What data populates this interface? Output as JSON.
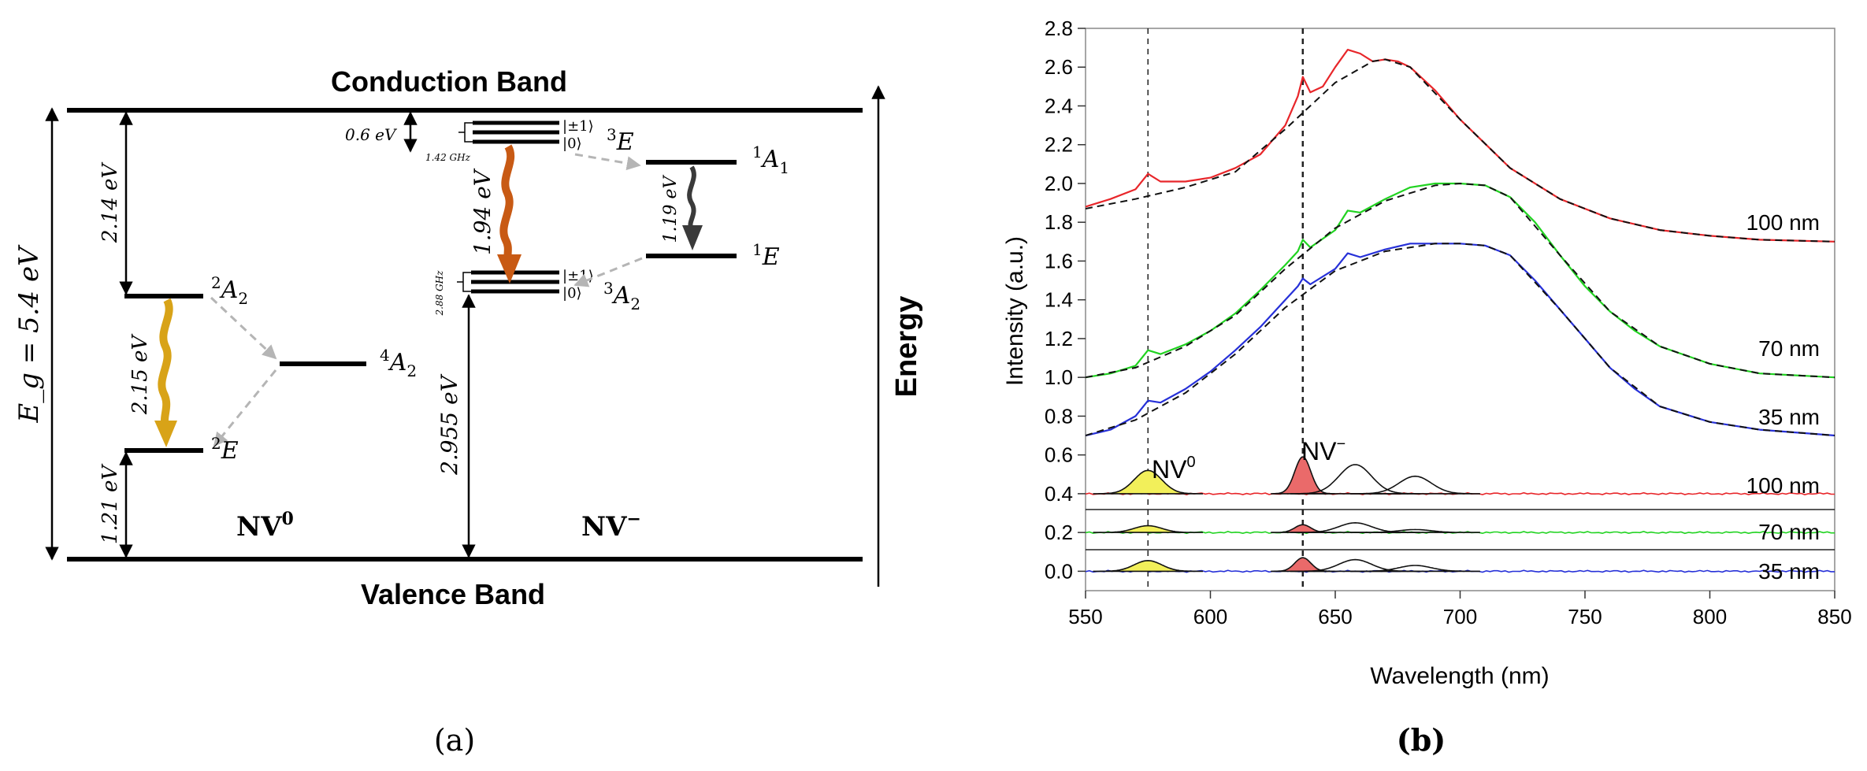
{
  "colors": {
    "curve_100": "#e8262a",
    "curve_70": "#21d321",
    "curve_35": "#2630d8",
    "fit": "#111111",
    "nv0_fill": "#f2ef5a",
    "nvm_fill": "#ea6a6a",
    "arrow_nv0": "#d8a318",
    "arrow_nvm": "#c85a14",
    "arrow_dark": "#3a3a3a",
    "dashed_gray": "#b5b5b5"
  },
  "panel_a": {
    "caption": "(a)",
    "conduction_band": "Conduction Band",
    "valence_band": "Valence Band",
    "energy_label": "Energy",
    "bandgap": "E_g = 5.4 eV",
    "nv0": {
      "label": "NV",
      "charge": "0",
      "gap_top": "2.14 eV",
      "gap_bottom": "1.21 eV",
      "transition": "2.15 eV",
      "states": {
        "a2": "A",
        "a2_sub": "2",
        "a2_sup": "2",
        "e": "E",
        "e_sup": "2",
        "a4": "A",
        "a4_sub": "2",
        "a4_sup": "4"
      }
    },
    "nvm": {
      "label": "NV",
      "charge": "−",
      "gap_top": "0.6 eV",
      "gap_bottom": "2.955 eV",
      "transition_main": "1.94 eV",
      "transition_singlet": "1.19 eV",
      "split_excited": "1.42 GHz",
      "split_ground": "2.88 GHz",
      "sublevel_pm1": "|±1⟩",
      "sublevel_0": "|0⟩",
      "states": {
        "e3": "E",
        "e3_sup": "3",
        "a2_3": "A",
        "a2_3_sub": "2",
        "a2_3_sup": "3",
        "a1": "A",
        "a1_sub": "1",
        "a1_sup": "1",
        "e1": "E",
        "e1_sup": "1"
      }
    }
  },
  "panel_b": {
    "caption": "(b)",
    "peak_labels": {
      "nv0": "NV",
      "nv0_sup": "0",
      "nvm": "NV",
      "nvm_sup": "−"
    },
    "curve_labels": {
      "upper_100": "100 nm",
      "upper_70": "70 nm",
      "upper_35": "35 nm",
      "lower_100": "100 nm",
      "lower_70": "70 nm",
      "lower_35": "35 nm"
    }
  },
  "chart_data": {
    "type": "line",
    "title": "",
    "xlabel": "Wavelength (nm)",
    "ylabel": "Intensity (a.u.)",
    "xlim": [
      550,
      850
    ],
    "ylim": [
      -0.1,
      2.8
    ],
    "x_ticks": [
      550,
      600,
      650,
      700,
      750,
      800,
      850
    ],
    "y_ticks": [
      0.0,
      0.2,
      0.4,
      0.6,
      0.8,
      1.0,
      1.2,
      1.4,
      1.6,
      1.8,
      2.0,
      2.2,
      2.4,
      2.6,
      2.8
    ],
    "reference_lines": [
      575,
      637
    ],
    "series": [
      {
        "name": "100 nm",
        "color": "#e8262a",
        "x": [
          550,
          560,
          570,
          575,
          580,
          590,
          600,
          610,
          620,
          630,
          635,
          637,
          640,
          645,
          650,
          655,
          660,
          665,
          670,
          675,
          680,
          690,
          700,
          720,
          740,
          760,
          780,
          800,
          820,
          850
        ],
        "y": [
          1.88,
          1.92,
          1.97,
          2.05,
          2.01,
          2.01,
          2.03,
          2.08,
          2.15,
          2.3,
          2.45,
          2.55,
          2.47,
          2.5,
          2.6,
          2.69,
          2.67,
          2.63,
          2.64,
          2.63,
          2.6,
          2.48,
          2.33,
          2.08,
          1.92,
          1.82,
          1.76,
          1.73,
          1.71,
          1.7
        ]
      },
      {
        "name": "100 nm fit",
        "color": "#111111",
        "x": [
          550,
          570,
          590,
          610,
          630,
          650,
          665,
          670,
          680,
          700,
          720,
          740,
          760,
          780,
          800,
          820,
          850
        ],
        "y": [
          1.87,
          1.92,
          1.98,
          2.06,
          2.28,
          2.52,
          2.63,
          2.64,
          2.6,
          2.33,
          2.08,
          1.92,
          1.82,
          1.76,
          1.73,
          1.71,
          1.7
        ]
      },
      {
        "name": "70 nm",
        "color": "#21d321",
        "x": [
          550,
          560,
          570,
          575,
          580,
          590,
          600,
          610,
          620,
          630,
          635,
          637,
          640,
          650,
          655,
          660,
          670,
          680,
          690,
          700,
          710,
          720,
          730,
          740,
          750,
          760,
          770,
          780,
          800,
          820,
          850
        ],
        "y": [
          1.0,
          1.02,
          1.06,
          1.14,
          1.12,
          1.17,
          1.24,
          1.33,
          1.45,
          1.58,
          1.65,
          1.71,
          1.67,
          1.76,
          1.86,
          1.85,
          1.92,
          1.98,
          2.0,
          2.0,
          1.99,
          1.93,
          1.8,
          1.63,
          1.47,
          1.34,
          1.24,
          1.16,
          1.07,
          1.02,
          1.0
        ]
      },
      {
        "name": "70 nm fit",
        "color": "#111111",
        "x": [
          550,
          570,
          590,
          610,
          630,
          650,
          670,
          690,
          700,
          710,
          720,
          740,
          760,
          780,
          800,
          820,
          850
        ],
        "y": [
          1.0,
          1.05,
          1.16,
          1.32,
          1.56,
          1.77,
          1.91,
          1.99,
          2.0,
          1.99,
          1.93,
          1.63,
          1.34,
          1.16,
          1.07,
          1.02,
          1.0
        ]
      },
      {
        "name": "35 nm",
        "color": "#2630d8",
        "x": [
          550,
          560,
          570,
          575,
          580,
          590,
          600,
          610,
          620,
          630,
          635,
          637,
          640,
          650,
          655,
          660,
          670,
          680,
          690,
          700,
          710,
          720,
          730,
          740,
          750,
          760,
          770,
          780,
          800,
          820,
          850
        ],
        "y": [
          0.7,
          0.73,
          0.8,
          0.88,
          0.87,
          0.94,
          1.03,
          1.14,
          1.26,
          1.4,
          1.47,
          1.51,
          1.48,
          1.56,
          1.64,
          1.62,
          1.66,
          1.69,
          1.69,
          1.69,
          1.68,
          1.63,
          1.5,
          1.35,
          1.2,
          1.05,
          0.94,
          0.85,
          0.77,
          0.73,
          0.7
        ]
      },
      {
        "name": "35 nm fit",
        "color": "#111111",
        "x": [
          550,
          570,
          590,
          610,
          630,
          650,
          670,
          690,
          700,
          710,
          720,
          740,
          760,
          780,
          800,
          820,
          850
        ],
        "y": [
          0.7,
          0.78,
          0.92,
          1.12,
          1.36,
          1.55,
          1.65,
          1.69,
          1.69,
          1.68,
          1.63,
          1.35,
          1.05,
          0.85,
          0.77,
          0.73,
          0.7
        ]
      }
    ],
    "decomposition": {
      "baselines": {
        "100 nm": 0.4,
        "70 nm": 0.2,
        "35 nm": 0.0
      },
      "peaks": [
        {
          "curve": "100 nm",
          "center": 575,
          "height": 0.12,
          "fill": "nv0"
        },
        {
          "curve": "100 nm",
          "center": 637,
          "height": 0.19,
          "fill": "nvm"
        },
        {
          "curve": "100 nm",
          "center": 658,
          "height": 0.15,
          "fill": "none"
        },
        {
          "curve": "100 nm",
          "center": 682,
          "height": 0.09,
          "fill": "none"
        },
        {
          "curve": "70 nm",
          "center": 575,
          "height": 0.035,
          "fill": "nv0"
        },
        {
          "curve": "70 nm",
          "center": 637,
          "height": 0.04,
          "fill": "nvm"
        },
        {
          "curve": "70 nm",
          "center": 658,
          "height": 0.05,
          "fill": "none"
        },
        {
          "curve": "70 nm",
          "center": 682,
          "height": 0.015,
          "fill": "none"
        },
        {
          "curve": "35 nm",
          "center": 575,
          "height": 0.055,
          "fill": "nv0"
        },
        {
          "curve": "35 nm",
          "center": 637,
          "height": 0.07,
          "fill": "nvm"
        },
        {
          "curve": "35 nm",
          "center": 658,
          "height": 0.06,
          "fill": "none"
        },
        {
          "curve": "35 nm",
          "center": 682,
          "height": 0.03,
          "fill": "none"
        }
      ]
    }
  }
}
